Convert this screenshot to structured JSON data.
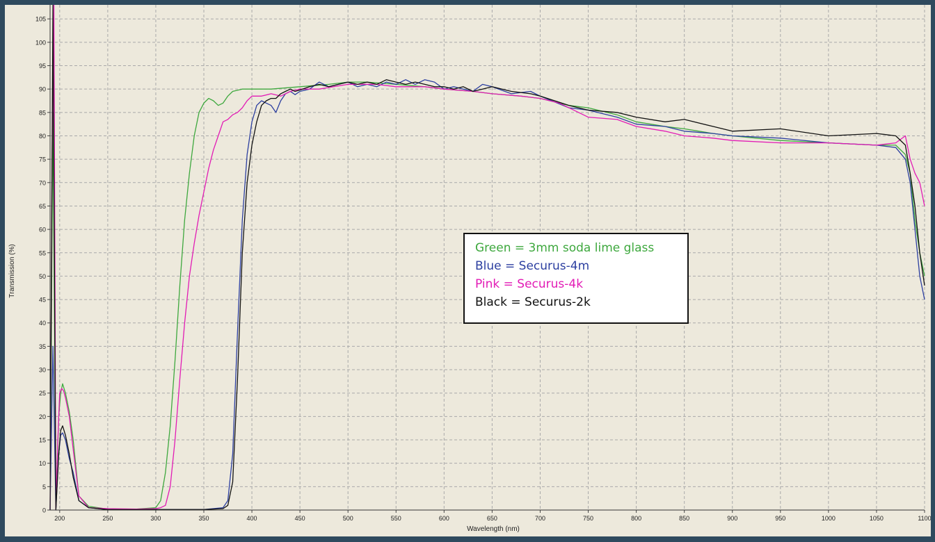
{
  "chart_data": {
    "type": "line",
    "title": "",
    "xlabel": "Wavelength (nm)",
    "ylabel": "Transmission (%)",
    "xlim": [
      190,
      1100
    ],
    "ylim": [
      0,
      108
    ],
    "grid": true,
    "legend_placement": "center-right",
    "x_ticks": [
      "200",
      "250",
      "300",
      "350",
      "400",
      "450",
      "500",
      "550",
      "600",
      "650",
      "700",
      "750",
      "800",
      "850",
      "900",
      "950",
      "1000",
      "1050",
      "1100"
    ],
    "y_ticks": [
      "0",
      "5",
      "10",
      "15",
      "20",
      "25",
      "30",
      "35",
      "40",
      "45",
      "50",
      "55",
      "60",
      "65",
      "70",
      "75",
      "80",
      "85",
      "90",
      "95",
      "100",
      "105"
    ],
    "legend": [
      {
        "text": "Green = 3mm soda lime glass",
        "color": "#3ea83e"
      },
      {
        "text": "Blue = Securus-4m",
        "color": "#2c3fa0"
      },
      {
        "text": "Pink = Securus-4k",
        "color": "#e21bb5"
      },
      {
        "text": "Black = Securus-2k",
        "color": "#111111"
      }
    ],
    "series": [
      {
        "color": "#3ea83e",
        "x": [
          190,
          193,
          196,
          199,
          201,
          203,
          206,
          210,
          214,
          220,
          230,
          250,
          280,
          300,
          305,
          310,
          315,
          320,
          325,
          330,
          335,
          340,
          345,
          350,
          355,
          360,
          365,
          370,
          375,
          380,
          390,
          400,
          420,
          450,
          480,
          500,
          520,
          550,
          580,
          600,
          630,
          650,
          680,
          700,
          730,
          750,
          780,
          800,
          830,
          850,
          880,
          900,
          950,
          1000,
          1050,
          1070,
          1080,
          1085,
          1090,
          1095,
          1100
        ],
        "y": [
          0,
          85,
          0,
          20,
          25,
          27,
          25,
          21,
          15,
          3,
          0.8,
          0.2,
          0.2,
          0.5,
          2,
          8,
          18,
          32,
          48,
          62,
          72,
          80,
          85,
          87,
          88,
          87.5,
          86.5,
          87,
          88.5,
          89.5,
          90,
          90,
          90,
          90.5,
          91,
          91.5,
          91.5,
          91,
          90.5,
          90,
          89.5,
          89,
          88.5,
          88,
          86.5,
          86,
          84.5,
          83,
          82,
          81.5,
          80.5,
          80,
          79,
          78.5,
          78,
          78,
          76,
          72,
          62,
          55,
          50
        ]
      },
      {
        "color": "#2c3fa0",
        "x": [
          190,
          193,
          196,
          199,
          201,
          203,
          206,
          210,
          214,
          220,
          230,
          250,
          300,
          350,
          370,
          375,
          380,
          385,
          390,
          395,
          400,
          405,
          410,
          415,
          420,
          425,
          430,
          435,
          440,
          445,
          450,
          460,
          470,
          480,
          490,
          500,
          510,
          520,
          530,
          540,
          550,
          560,
          570,
          580,
          590,
          600,
          610,
          620,
          630,
          640,
          650,
          670,
          690,
          700,
          730,
          750,
          780,
          800,
          830,
          850,
          880,
          900,
          950,
          1000,
          1050,
          1070,
          1080,
          1085,
          1090,
          1095,
          1100
        ],
        "y": [
          0,
          35,
          0,
          12,
          16,
          16.5,
          15,
          11,
          8,
          2,
          0.5,
          0.1,
          0.1,
          0.1,
          0.5,
          2,
          12,
          38,
          62,
          76,
          83,
          86.5,
          87.5,
          87,
          86.5,
          85,
          87.5,
          89,
          89.5,
          88.8,
          89.5,
          90,
          91.5,
          90.5,
          91,
          91.5,
          90.5,
          91,
          90.5,
          91.5,
          91,
          92,
          91,
          92,
          91.5,
          90,
          90.5,
          90,
          89.5,
          91,
          90.5,
          89,
          89.5,
          88.5,
          86,
          85.5,
          84,
          82.5,
          82,
          81,
          80.5,
          80,
          79.5,
          78.5,
          78,
          77.5,
          75,
          70,
          60,
          50,
          45
        ]
      },
      {
        "color": "#e21bb5",
        "x": [
          190,
          192,
          194,
          196,
          198,
          200,
          202,
          204,
          206,
          210,
          214,
          220,
          230,
          250,
          280,
          300,
          305,
          310,
          315,
          320,
          325,
          330,
          335,
          340,
          345,
          350,
          355,
          360,
          365,
          370,
          375,
          380,
          385,
          390,
          395,
          400,
          410,
          420,
          430,
          440,
          450,
          470,
          500,
          530,
          550,
          580,
          600,
          630,
          650,
          680,
          700,
          720,
          750,
          780,
          800,
          830,
          850,
          880,
          900,
          950,
          1000,
          1050,
          1070,
          1080,
          1085,
          1090,
          1095,
          1100
        ],
        "y": [
          0,
          75,
          108,
          0,
          15,
          25,
          26,
          25.5,
          24,
          20,
          13,
          3,
          0.5,
          0.3,
          0.2,
          0.3,
          0.5,
          1,
          5,
          15,
          28,
          40,
          50,
          57,
          63,
          68,
          73,
          77,
          80,
          83,
          83.5,
          84.5,
          85,
          86,
          87.5,
          88.5,
          88.5,
          89,
          88.5,
          89.5,
          90,
          90,
          91,
          91,
          90.5,
          90.5,
          90,
          89.5,
          89,
          88.5,
          88,
          87,
          84,
          83.5,
          82,
          81,
          80,
          79.5,
          79,
          78.5,
          78.5,
          78,
          78.5,
          80,
          75,
          72,
          70,
          65
        ]
      },
      {
        "color": "#111111",
        "x": [
          190,
          193,
          196,
          199,
          201,
          203,
          206,
          210,
          214,
          220,
          230,
          250,
          300,
          350,
          370,
          375,
          380,
          385,
          390,
          395,
          400,
          405,
          410,
          415,
          420,
          425,
          430,
          435,
          440,
          445,
          450,
          460,
          470,
          480,
          490,
          500,
          510,
          520,
          530,
          540,
          550,
          560,
          570,
          580,
          590,
          600,
          610,
          620,
          630,
          640,
          650,
          670,
          690,
          700,
          730,
          750,
          780,
          800,
          830,
          850,
          880,
          900,
          950,
          1000,
          1050,
          1070,
          1080,
          1085,
          1090,
          1095,
          1100
        ],
        "y": [
          0,
          108,
          0,
          12,
          17,
          18,
          16,
          12,
          7,
          2,
          0.5,
          0.1,
          0.1,
          0.1,
          0.3,
          1,
          6,
          28,
          55,
          70,
          78,
          83,
          86.5,
          87.5,
          88,
          88,
          89,
          89.5,
          90,
          89.5,
          89.8,
          90.5,
          91,
          90.5,
          91,
          91.5,
          91,
          91.5,
          91,
          92,
          91.5,
          91,
          91.5,
          91,
          90.5,
          90.5,
          90,
          90.5,
          89.5,
          90,
          90.5,
          89.5,
          89,
          88.5,
          86.5,
          85.5,
          85,
          84,
          83,
          83.5,
          82,
          81,
          81.5,
          80,
          80.5,
          80,
          78,
          72,
          65,
          55,
          48
        ]
      }
    ]
  }
}
